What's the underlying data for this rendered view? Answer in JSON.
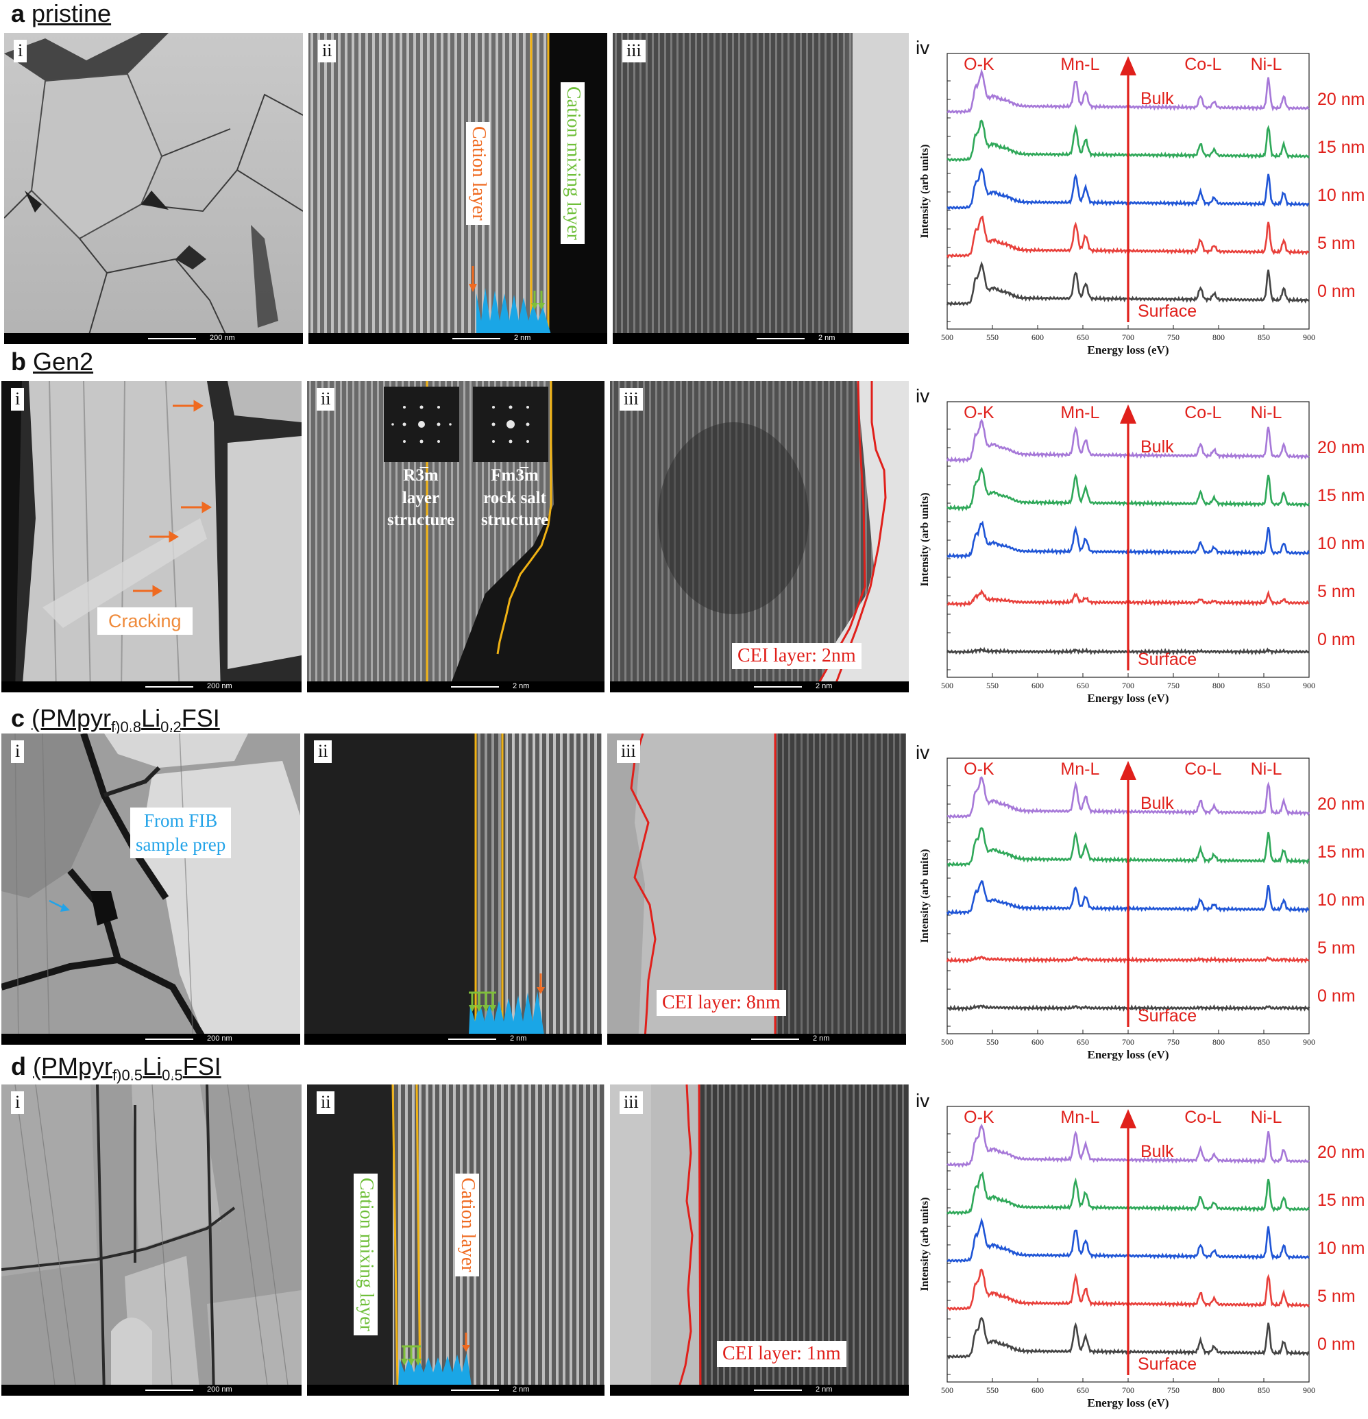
{
  "figure": {
    "rows": [
      {
        "letter": "a",
        "title": "pristine",
        "panels": {
          "i": {
            "label": "i",
            "scale": "200 nm"
          },
          "ii": {
            "label": "ii",
            "scale": "2 nm",
            "annotations": {
              "cation_layer": "Cation layer",
              "cation_mixing_layer": "Cation mixing layer"
            }
          },
          "iii": {
            "label": "iii",
            "scale": "2 nm"
          }
        }
      },
      {
        "letter": "b",
        "title": "Gen2",
        "panels": {
          "i": {
            "label": "i",
            "scale": "200 nm",
            "annotations": {
              "cracking": "Cracking"
            }
          },
          "ii": {
            "label": "ii",
            "scale": "2 nm",
            "annotations": {
              "left_group": "R3̅m",
              "left_line2": "layer",
              "left_line3": "structure",
              "right_group": "Fm3̅m",
              "right_line2": "rock salt",
              "right_line3": "structure"
            }
          },
          "iii": {
            "label": "iii",
            "scale": "2 nm",
            "annotations": {
              "cei": "CEI layer: 2nm"
            }
          }
        }
      },
      {
        "letter": "c",
        "title_parts": {
          "p1": "(PMpyr",
          "s1": "f",
          "s2": ")0.8",
          "p2": "Li",
          "s3": "0.2",
          "p3": "FSI"
        },
        "panels": {
          "i": {
            "label": "i",
            "scale": "200 nm",
            "annotations": {
              "fib_line1": "From FIB",
              "fib_line2": "sample prep"
            }
          },
          "ii": {
            "label": "ii",
            "scale": "2 nm"
          },
          "iii": {
            "label": "iii",
            "scale": "2 nm",
            "annotations": {
              "cei": "CEI layer: 8nm"
            }
          }
        }
      },
      {
        "letter": "d",
        "title_parts": {
          "p1": "(PMpyr",
          "s1": "f",
          "s2": ")0.5",
          "p2": "Li",
          "s3": "0.5",
          "p3": "FSI"
        },
        "panels": {
          "i": {
            "label": "i",
            "scale": "200 nm"
          },
          "ii": {
            "label": "ii",
            "scale": "2 nm",
            "annotations": {
              "cation_mixing_layer": "Cation mixing layer",
              "cation_layer": "Cation layer"
            }
          },
          "iii": {
            "label": "iii",
            "scale": "2 nm",
            "annotations": {
              "cei": "CEI layer: 1nm"
            }
          }
        }
      }
    ],
    "eels_common": {
      "panel_label": "iv",
      "edges": [
        "O-K",
        "Mn-L",
        "Co-L",
        "Ni-L"
      ],
      "bulk": "Bulk",
      "surface": "Surface",
      "depths": [
        "20 nm",
        "15 nm",
        "10 nm",
        "5 nm",
        "0 nm"
      ]
    }
  },
  "chart_data": [
    {
      "type": "line",
      "panel": "a-iv",
      "xlabel": "Energy loss (eV)",
      "ylabel": "Intensity (arb units)",
      "xlim": [
        500,
        900
      ],
      "xticks": [
        500,
        550,
        600,
        650,
        700,
        750,
        800,
        850,
        900
      ],
      "series": [
        {
          "name": "20 nm",
          "color": "#a678d8",
          "edge_strength": 1.0
        },
        {
          "name": "15 nm",
          "color": "#2fa859",
          "edge_strength": 1.0
        },
        {
          "name": "10 nm",
          "color": "#1f55d6",
          "edge_strength": 1.0
        },
        {
          "name": "5 nm",
          "color": "#e8403b",
          "edge_strength": 1.0
        },
        {
          "name": "0 nm",
          "color": "#444444",
          "edge_strength": 1.0
        }
      ]
    },
    {
      "type": "line",
      "panel": "b-iv",
      "xlabel": "Energy loss (eV)",
      "ylabel": "Intensity (arb units)",
      "xlim": [
        500,
        900
      ],
      "xticks": [
        500,
        550,
        600,
        650,
        700,
        750,
        800,
        850,
        900
      ],
      "series": [
        {
          "name": "20 nm",
          "color": "#a678d8",
          "edge_strength": 1.0
        },
        {
          "name": "15 nm",
          "color": "#2fa859",
          "edge_strength": 1.0
        },
        {
          "name": "10 nm",
          "color": "#1f55d6",
          "edge_strength": 0.85
        },
        {
          "name": "5 nm",
          "color": "#e8403b",
          "edge_strength": 0.3
        },
        {
          "name": "0 nm",
          "color": "#444444",
          "edge_strength": 0.05
        }
      ]
    },
    {
      "type": "line",
      "panel": "c-iv",
      "xlabel": "Energy loss (eV)",
      "ylabel": "Intensity (arb units)",
      "xlim": [
        500,
        900
      ],
      "xticks": [
        500,
        550,
        600,
        650,
        700,
        750,
        800,
        850,
        900
      ],
      "series": [
        {
          "name": "20 nm",
          "color": "#a678d8",
          "edge_strength": 1.0
        },
        {
          "name": "15 nm",
          "color": "#2fa859",
          "edge_strength": 0.95
        },
        {
          "name": "10 nm",
          "color": "#1f55d6",
          "edge_strength": 0.8
        },
        {
          "name": "5 nm",
          "color": "#e8403b",
          "edge_strength": 0.08
        },
        {
          "name": "0 nm",
          "color": "#444444",
          "edge_strength": 0.06
        }
      ]
    },
    {
      "type": "line",
      "panel": "d-iv",
      "xlabel": "Energy loss (eV)",
      "ylabel": "Intensity (arb units)",
      "xlim": [
        500,
        900
      ],
      "xticks": [
        500,
        550,
        600,
        650,
        700,
        750,
        800,
        850,
        900
      ],
      "series": [
        {
          "name": "20 nm",
          "color": "#a678d8",
          "edge_strength": 1.0
        },
        {
          "name": "15 nm",
          "color": "#2fa859",
          "edge_strength": 1.0
        },
        {
          "name": "10 nm",
          "color": "#1f55d6",
          "edge_strength": 1.0
        },
        {
          "name": "5 nm",
          "color": "#e8403b",
          "edge_strength": 1.0
        },
        {
          "name": "0 nm",
          "color": "#444444",
          "edge_strength": 1.0
        }
      ]
    }
  ]
}
